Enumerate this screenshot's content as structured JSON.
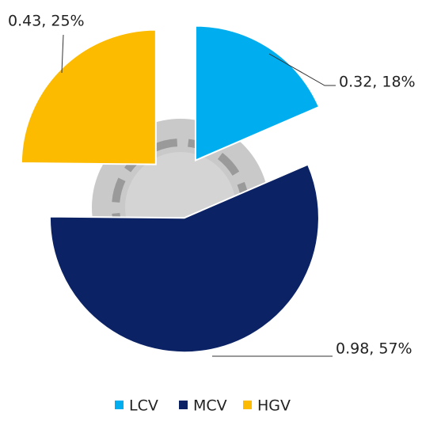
{
  "chart_data": {
    "type": "pie",
    "categories": [
      "LCV",
      "MCV",
      "HGV"
    ],
    "values": [
      0.32,
      0.98,
      0.43
    ],
    "value_labels": [
      "0.32, 18%",
      "0.98, 57%",
      "0.43, 25%"
    ],
    "colors": [
      "#00aeef",
      "#0b2265",
      "#fdbb00"
    ],
    "legend": "bottom"
  }
}
